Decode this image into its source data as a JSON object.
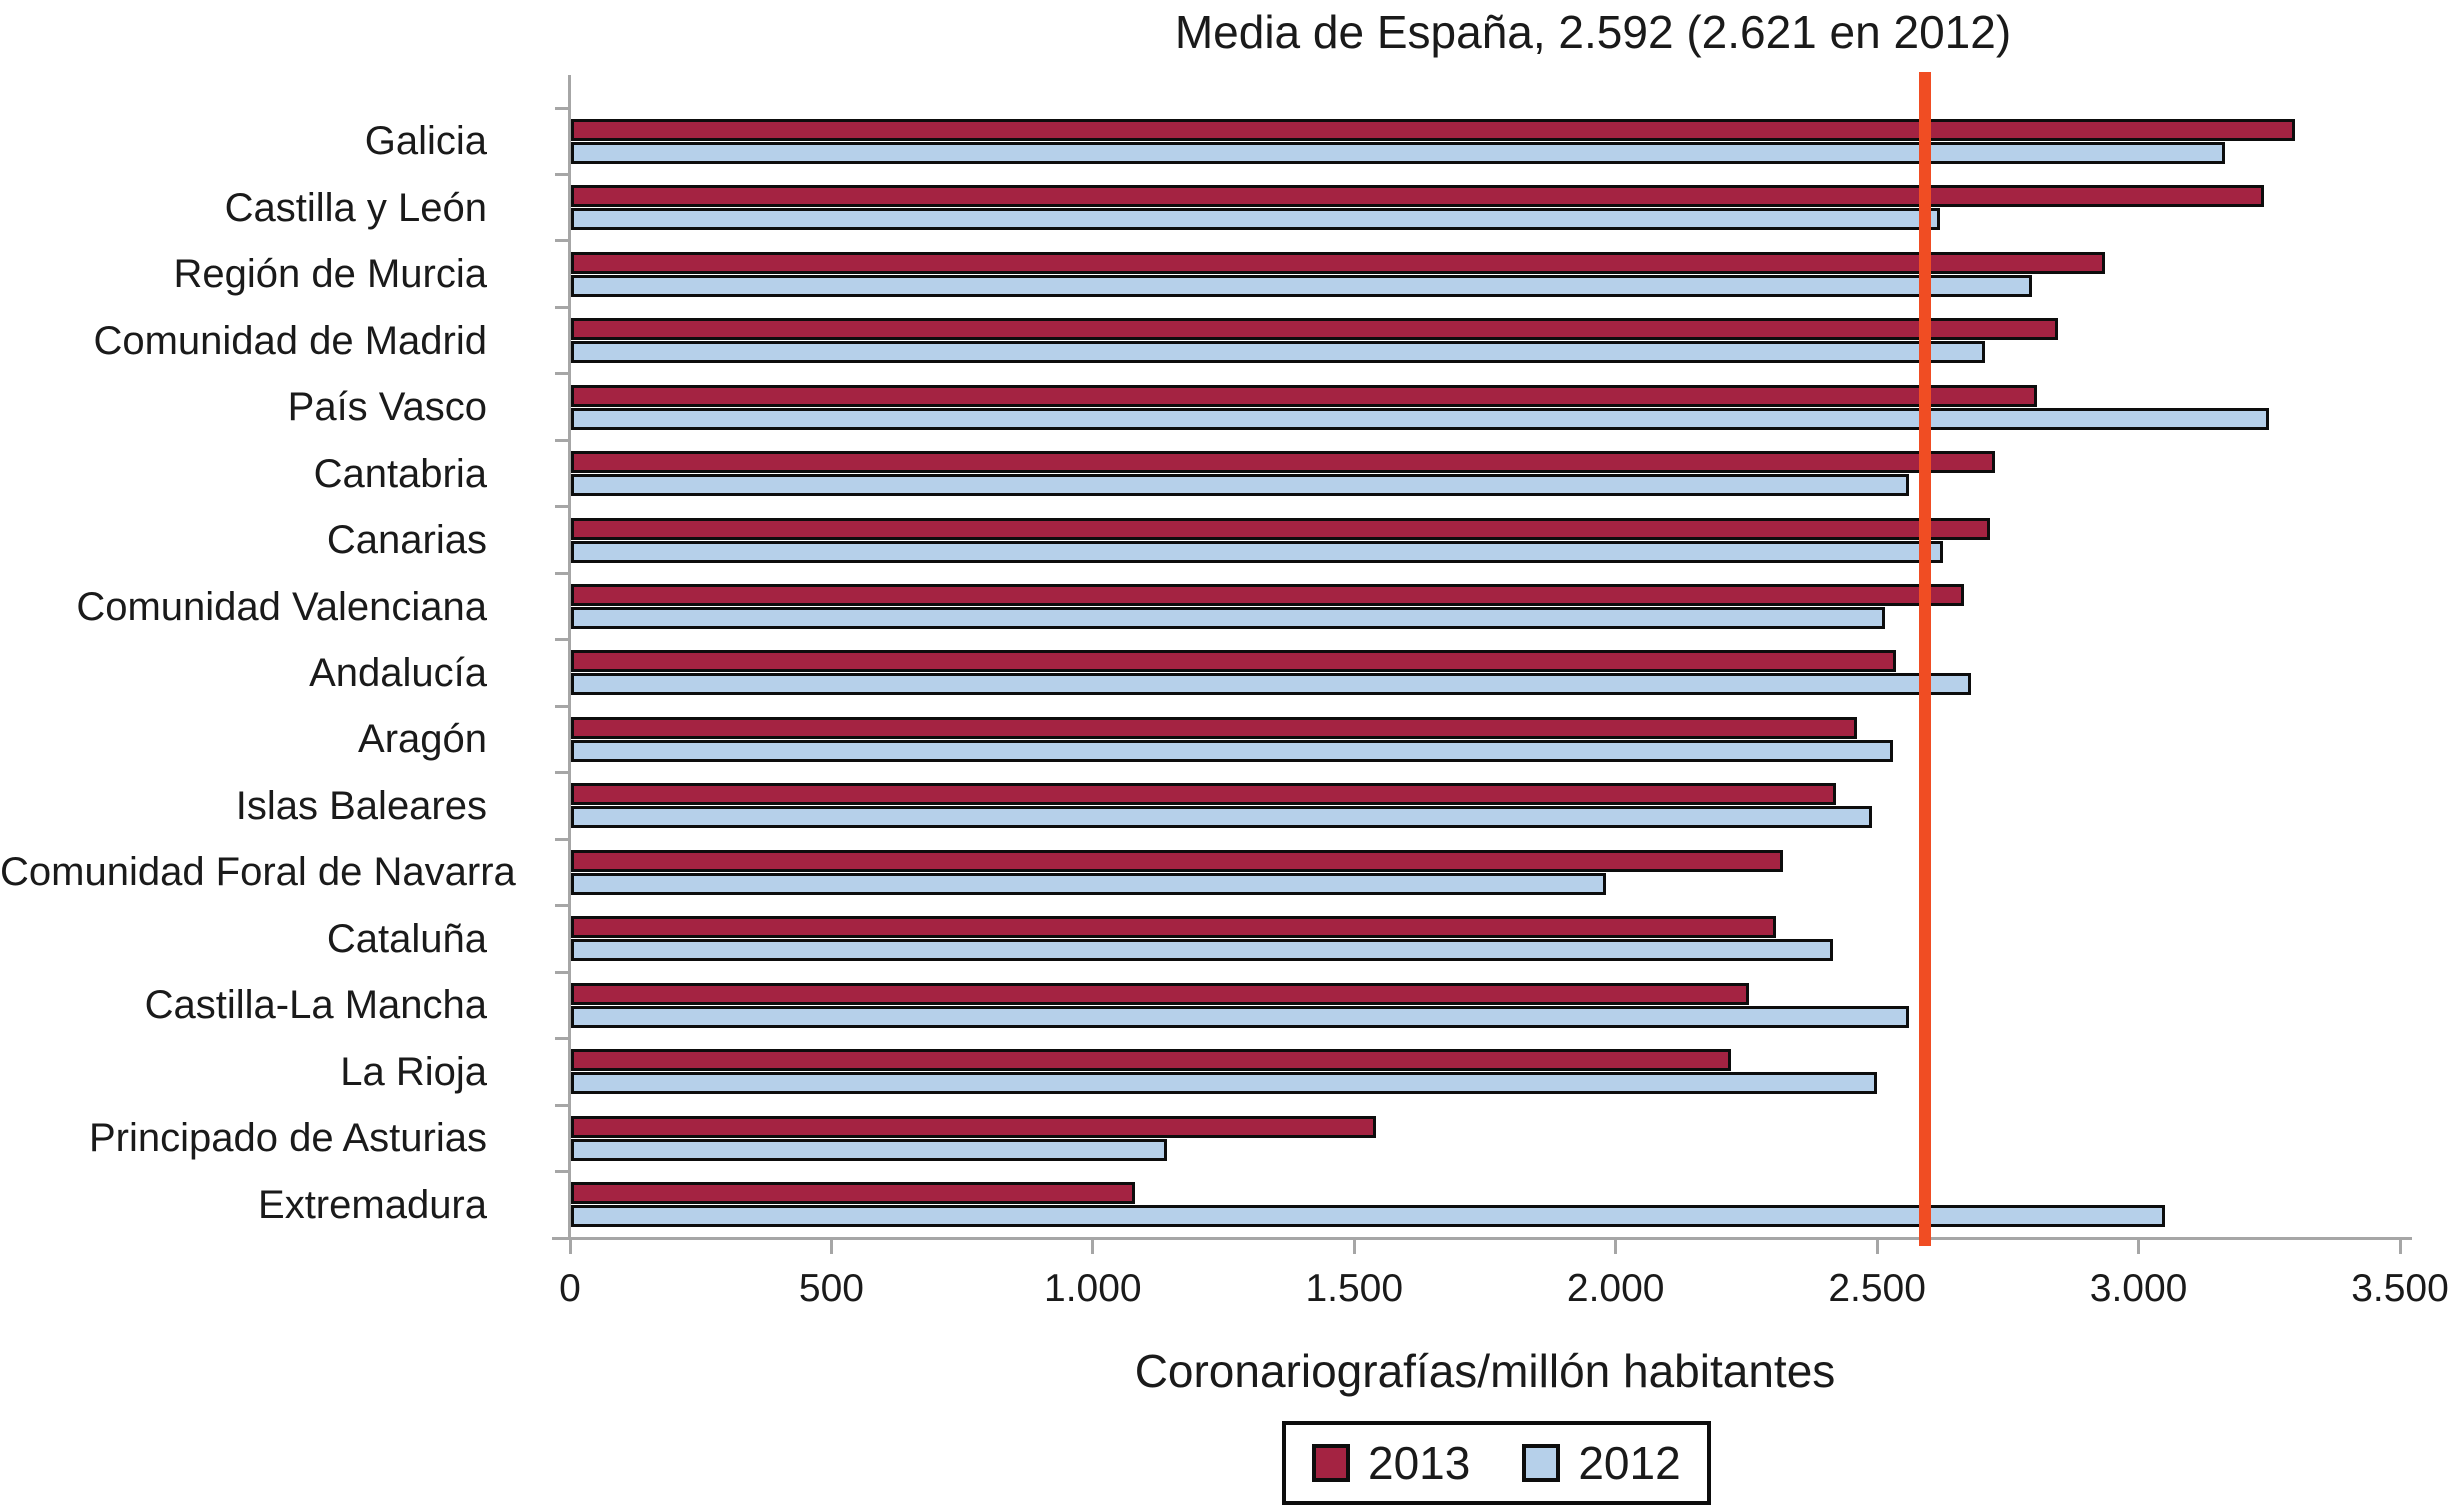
{
  "title": "Media de España, 2.592 (2.621 en 2012)",
  "x_axis_label": "Coronariografías/millón habitantes",
  "legend": {
    "items": [
      {
        "label": "2013",
        "color": "#a42342"
      },
      {
        "label": "2012",
        "color": "#b6d0ea"
      }
    ]
  },
  "colors": {
    "axis": "#a6a6a6",
    "bar_border": "#0d0d0d",
    "reference_line": "#f04d23"
  },
  "chart_data": {
    "type": "bar",
    "orientation": "horizontal",
    "title": "Media de España, 2.592 (2.621 en 2012)",
    "xlabel": "Coronariografías/millón habitantes",
    "xlim": [
      0,
      3500
    ],
    "grid": false,
    "legend_position": "bottom",
    "x_ticks": [
      {
        "value": 0,
        "label": "0"
      },
      {
        "value": 500,
        "label": "500"
      },
      {
        "value": 1000,
        "label": "1.000"
      },
      {
        "value": 1500,
        "label": "1.500"
      },
      {
        "value": 2000,
        "label": "2.000"
      },
      {
        "value": 2500,
        "label": "2.500"
      },
      {
        "value": 3000,
        "label": "3.000"
      },
      {
        "value": 3500,
        "label": "3.500"
      }
    ],
    "reference_line": {
      "axis": "x",
      "value": 2592,
      "value_previous_year": 2621,
      "label": "Media de España, 2.592 (2.621 en 2012)",
      "color": "#f04d23"
    },
    "categories": [
      "Galicia",
      "Castilla y León",
      "Región de Murcia",
      "Comunidad de Madrid",
      "País Vasco",
      "Cantabria",
      "Canarias",
      "Comunidad Valenciana",
      "Andalucía",
      "Aragón",
      "Islas Baleares",
      "Comunidad Foral de Navarra",
      "Cataluña",
      "Castilla-La Mancha",
      "La Rioja",
      "Principado de Asturias",
      "Extremadura"
    ],
    "series": [
      {
        "name": "2013",
        "color": "#a42342",
        "values": [
          3300,
          3240,
          2935,
          2845,
          2805,
          2725,
          2715,
          2665,
          2535,
          2460,
          2420,
          2320,
          2305,
          2255,
          2220,
          1540,
          1080
        ]
      },
      {
        "name": "2012",
        "color": "#b6d0ea",
        "values": [
          3165,
          2620,
          2795,
          2705,
          3250,
          2560,
          2625,
          2515,
          2680,
          2530,
          2490,
          1980,
          2415,
          2560,
          2500,
          1140,
          3050
        ]
      }
    ]
  }
}
